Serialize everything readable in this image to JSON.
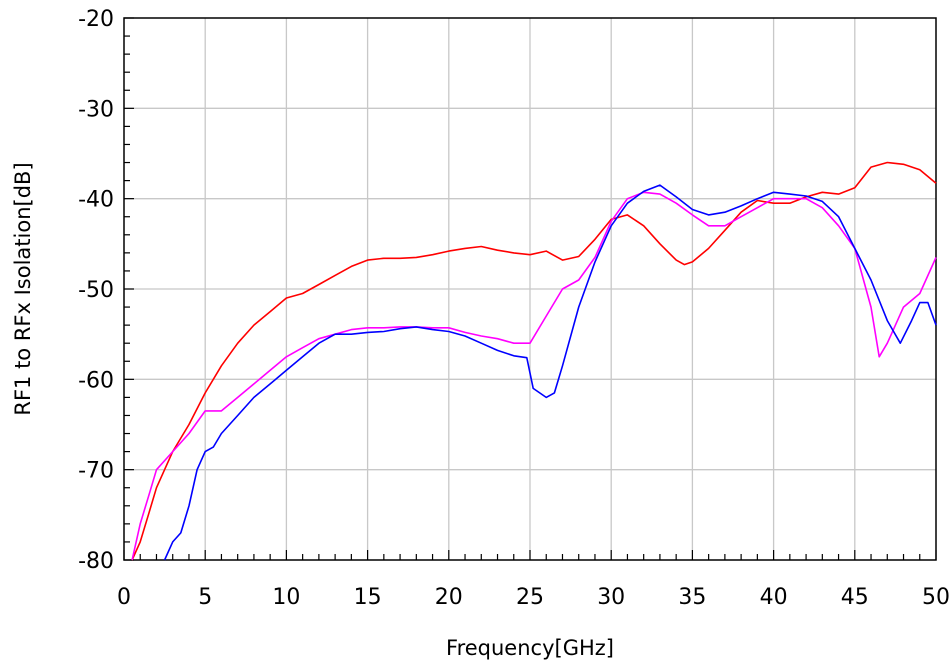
{
  "chart_data": {
    "type": "line",
    "title": "",
    "xlabel": "Frequency[GHz]",
    "ylabel": "RF1 to RFx Isolation[dB]",
    "xlim": [
      0,
      50
    ],
    "ylim": [
      -80,
      -20
    ],
    "x_ticks": [
      0,
      5,
      10,
      15,
      20,
      25,
      30,
      35,
      40,
      45,
      50
    ],
    "y_ticks": [
      -80,
      -70,
      -60,
      -50,
      -40,
      -30,
      -20
    ],
    "x_tick_labels": [
      "0",
      "5",
      "10",
      "15",
      "20",
      "25",
      "30",
      "35",
      "40",
      "45",
      "50"
    ],
    "y_tick_labels": [
      "-80",
      "-70",
      "-60",
      "-50",
      "-40",
      "-30",
      "-20"
    ],
    "grid": true,
    "series": [
      {
        "color": "#ff0000",
        "x": [
          0.5,
          1,
          1.5,
          2,
          3,
          4,
          5,
          6,
          7,
          8,
          9,
          10,
          11,
          12,
          13,
          14,
          15,
          16,
          17,
          18,
          19,
          20,
          21,
          22,
          23,
          24,
          25,
          26,
          27,
          28,
          29,
          30,
          31,
          32,
          33,
          34,
          34.5,
          35,
          36,
          37,
          38,
          39,
          40,
          41,
          42,
          43,
          44,
          45,
          46,
          47,
          48,
          49,
          50
        ],
        "y": [
          -80,
          -78,
          -75,
          -72,
          -68,
          -65,
          -61.5,
          -58.5,
          -56,
          -54,
          -52.5,
          -51,
          -50.5,
          -49.5,
          -48.5,
          -47.5,
          -46.8,
          -46.6,
          -46.6,
          -46.5,
          -46.2,
          -45.8,
          -45.5,
          -45.3,
          -45.7,
          -46,
          -46.2,
          -45.8,
          -46.8,
          -46.4,
          -44.5,
          -42.3,
          -41.8,
          -43,
          -45,
          -46.8,
          -47.3,
          -47,
          -45.5,
          -43.5,
          -41.5,
          -40.2,
          -40.5,
          -40.5,
          -39.8,
          -39.3,
          -39.5,
          -38.8,
          -36.5,
          -36,
          -36.2,
          -36.8,
          -38.3
        ]
      },
      {
        "color": "#ff00ff",
        "x": [
          0.5,
          1,
          1.5,
          2,
          3,
          4,
          5,
          6,
          7,
          8,
          9,
          10,
          11,
          12,
          13,
          14,
          15,
          16,
          17,
          18,
          19,
          20,
          21,
          22,
          23,
          24,
          25,
          26,
          27,
          28,
          29,
          30,
          31,
          32,
          33,
          34,
          35,
          36,
          37,
          38,
          39,
          40,
          41,
          42,
          43,
          44,
          45,
          46,
          46.5,
          47,
          48,
          49,
          50
        ],
        "y": [
          -80,
          -76,
          -73,
          -70,
          -68,
          -66,
          -63.5,
          -63.5,
          -62,
          -60.5,
          -59,
          -57.5,
          -56.5,
          -55.5,
          -55,
          -54.5,
          -54.3,
          -54.3,
          -54.2,
          -54.2,
          -54.3,
          -54.3,
          -54.8,
          -55.2,
          -55.5,
          -56,
          -56,
          -53,
          -50,
          -49,
          -46.5,
          -42.5,
          -40,
          -39.3,
          -39.5,
          -40.5,
          -41.8,
          -43,
          -43,
          -42,
          -41,
          -40,
          -40,
          -40,
          -41,
          -43,
          -45.5,
          -52,
          -57.5,
          -56,
          -52,
          -50.5,
          -46.5
        ]
      },
      {
        "color": "#0000ff",
        "x": [
          2.5,
          3,
          3.5,
          4,
          4.5,
          5,
          5.5,
          6,
          7,
          8,
          9,
          10,
          11,
          12,
          13,
          14,
          15,
          16,
          17,
          18,
          19,
          20,
          21,
          22,
          23,
          24,
          24.8,
          25.2,
          26,
          26.5,
          27,
          28,
          29,
          30,
          31,
          32,
          33,
          34,
          35,
          36,
          37,
          38,
          39,
          40,
          41,
          42,
          43,
          44,
          45,
          46,
          47,
          47.8,
          48.5,
          49,
          49.5,
          50
        ],
        "y": [
          -80,
          -78,
          -77,
          -74,
          -70,
          -68,
          -67.5,
          -66,
          -64,
          -62,
          -60.5,
          -59,
          -57.5,
          -56,
          -55,
          -55,
          -54.8,
          -54.7,
          -54.4,
          -54.2,
          -54.5,
          -54.7,
          -55.2,
          -56,
          -56.8,
          -57.4,
          -57.6,
          -61,
          -62,
          -61.5,
          -58.5,
          -52,
          -47,
          -43,
          -40.5,
          -39.2,
          -38.5,
          -39.8,
          -41.2,
          -41.8,
          -41.5,
          -40.8,
          -40,
          -39.3,
          -39.5,
          -39.7,
          -40.3,
          -42,
          -45.5,
          -49,
          -53.5,
          -56,
          -53.5,
          -51.5,
          -51.5,
          -54
        ]
      }
    ]
  }
}
